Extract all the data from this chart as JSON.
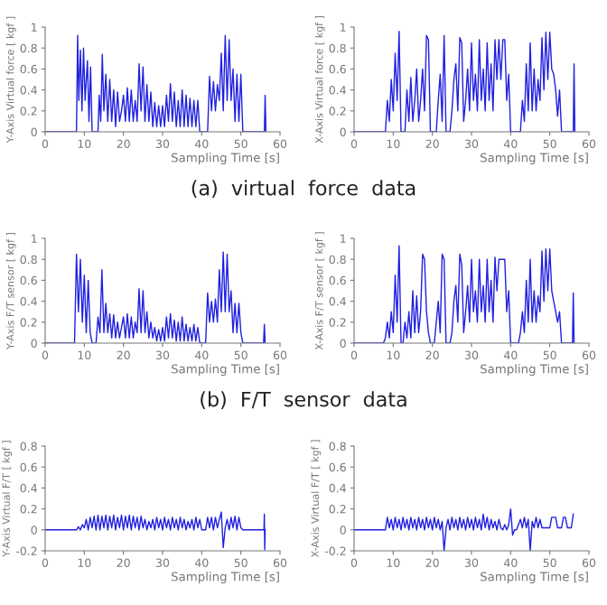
{
  "chart_data": [
    {
      "type": "line",
      "ylabel": "Y-Axis Virtual force [ kgf ]",
      "xlabel": "Sampling Time [s]",
      "xlim": [
        0,
        60
      ],
      "xticks": [
        0,
        10,
        20,
        30,
        40,
        50,
        60
      ],
      "ylim": [
        0,
        1
      ],
      "yticks": [
        0,
        0.2,
        0.4,
        0.6,
        0.8,
        1
      ],
      "grid": false,
      "legend": false,
      "series": [
        {
          "color": "#2020e0",
          "x": [
            0,
            8,
            8.3,
            8.6,
            9,
            9.4,
            9.8,
            10.2,
            10.8,
            11.2,
            11.6,
            12,
            13.5,
            13.8,
            14.2,
            14.6,
            15,
            15.5,
            16,
            16.5,
            17,
            17.5,
            18,
            18.5,
            19,
            19.5,
            20,
            20.5,
            21,
            21.5,
            22,
            22.5,
            23,
            23.5,
            24,
            24.5,
            25,
            25.5,
            26,
            26.5,
            27,
            27.5,
            28,
            28.5,
            29,
            29.5,
            30,
            30.5,
            31,
            31.5,
            32,
            32.5,
            33,
            33.5,
            34,
            34.5,
            35,
            35.5,
            36,
            36.5,
            37,
            37.5,
            38,
            38.5,
            39,
            39.5,
            41.5,
            42,
            42.5,
            43,
            43.5,
            44,
            44.5,
            45,
            45.5,
            46,
            46.5,
            47,
            47.5,
            48,
            48.5,
            49,
            49.5,
            50,
            50.5,
            56,
            56.2,
            56.4
          ],
          "values": [
            0,
            0,
            0.92,
            0.3,
            0.78,
            0.2,
            0.8,
            0.3,
            0.68,
            0.1,
            0.62,
            0,
            0,
            0.35,
            0.1,
            0.74,
            0.2,
            0.55,
            0.1,
            0.5,
            0.1,
            0.4,
            0.05,
            0.38,
            0.1,
            0.2,
            0.35,
            0.1,
            0.42,
            0.1,
            0.4,
            0.1,
            0.3,
            0.1,
            0.65,
            0.2,
            0.62,
            0.1,
            0.45,
            0.1,
            0.38,
            0.05,
            0.28,
            0.05,
            0.25,
            0.05,
            0.25,
            0.05,
            0.35,
            0.1,
            0.46,
            0.1,
            0.38,
            0.05,
            0.3,
            0.05,
            0.4,
            0.05,
            0.35,
            0.05,
            0.32,
            0.05,
            0.3,
            0.05,
            0.3,
            0,
            0,
            0.53,
            0.2,
            0.48,
            0.2,
            0.45,
            0.3,
            0.75,
            0.2,
            0.92,
            0.3,
            0.88,
            0.3,
            0.6,
            0.1,
            0.55,
            0.1,
            0.55,
            0,
            0,
            0.35,
            0
          ]
        }
      ],
      "annotations": [
        "(a)  virtual  force  data"
      ]
    },
    {
      "type": "line",
      "ylabel": "X-Axis Virtual force [ kgf ]",
      "xlabel": "Sampling Time [s]",
      "xlim": [
        0,
        60
      ],
      "xticks": [
        0,
        10,
        20,
        30,
        40,
        50,
        60
      ],
      "ylim": [
        0,
        1
      ],
      "yticks": [
        0,
        0.2,
        0.4,
        0.6,
        0.8,
        1
      ],
      "grid": false,
      "legend": false,
      "series": [
        {
          "color": "#2020e0",
          "x": [
            0,
            8,
            8.5,
            9,
            9.5,
            10,
            10.5,
            11,
            11.5,
            12,
            12.5,
            13,
            13.5,
            14,
            14.5,
            15,
            15.5,
            16,
            16.5,
            17,
            17.5,
            18,
            18.5,
            19,
            19.5,
            20,
            20.5,
            21,
            21.5,
            22,
            22.5,
            23,
            23.5,
            24,
            24.5,
            25,
            25.5,
            26,
            26.5,
            27,
            27.5,
            28,
            28.5,
            29,
            29.5,
            30,
            30.5,
            31,
            31.5,
            32,
            32.5,
            33,
            33.5,
            34,
            34.5,
            35,
            35.5,
            36,
            36.5,
            37,
            37.5,
            38,
            38.5,
            39,
            39.5,
            40,
            40.5,
            41,
            41.5,
            42,
            42.5,
            43,
            43.5,
            44,
            44.5,
            45,
            45.5,
            46,
            46.5,
            47,
            47.5,
            48,
            48.5,
            49,
            49.5,
            50,
            50.5,
            51,
            51.5,
            52,
            52.5,
            53,
            56,
            56.2,
            56.4
          ],
          "values": [
            0,
            0,
            0.3,
            0.1,
            0.5,
            0.2,
            0.75,
            0.3,
            0.96,
            0,
            0,
            0,
            0.4,
            0.1,
            0.52,
            0.1,
            0.3,
            0.6,
            0.1,
            0.3,
            0.6,
            0.2,
            0.92,
            0.88,
            0,
            0,
            0,
            0,
            0.3,
            0.55,
            0.1,
            0.92,
            0,
            0,
            0,
            0.2,
            0.5,
            0.65,
            0.2,
            0.9,
            0.85,
            0.1,
            0.3,
            0.6,
            0.2,
            0.85,
            0.3,
            0.55,
            0.2,
            0.88,
            0.3,
            0.6,
            0.2,
            0.85,
            0.3,
            0.65,
            0.2,
            0.88,
            0.5,
            0.88,
            0.5,
            0.88,
            0.88,
            0.3,
            0.55,
            0,
            0,
            0,
            0,
            0,
            0,
            0.3,
            0.1,
            0.65,
            0.2,
            0.85,
            0.2,
            0.6,
            0.2,
            0.5,
            0.3,
            0.9,
            0.4,
            0.95,
            0.5,
            0.95,
            0.6,
            0.55,
            0.4,
            0.15,
            0.4,
            0,
            0,
            0.65,
            0
          ]
        }
      ]
    },
    {
      "type": "line",
      "ylabel": "Y-Axis F/T sensor [ kgf ]",
      "xlabel": "Sampling Time [s]",
      "xlim": [
        0,
        60
      ],
      "xticks": [
        0,
        10,
        20,
        30,
        40,
        50,
        60
      ],
      "ylim": [
        0,
        1
      ],
      "yticks": [
        0,
        0.2,
        0.4,
        0.6,
        0.8,
        1
      ],
      "grid": false,
      "legend": false,
      "series": [
        {
          "color": "#2020e0",
          "x": [
            0,
            7.5,
            8,
            8.5,
            9,
            9.5,
            10,
            10.5,
            11,
            11.5,
            12,
            12.5,
            13,
            13.5,
            14,
            14.5,
            15,
            15.5,
            16,
            16.5,
            17,
            17.5,
            18,
            18.5,
            19,
            19.5,
            20,
            20.5,
            21,
            21.5,
            22,
            22.5,
            23,
            23.5,
            24,
            24.5,
            25,
            25.5,
            26,
            26.5,
            27,
            27.5,
            28,
            28.5,
            29,
            29.5,
            30,
            30.5,
            31,
            31.5,
            32,
            32.5,
            33,
            33.5,
            34,
            34.5,
            35,
            35.5,
            36,
            36.5,
            37,
            37.5,
            38,
            38.5,
            39,
            39.5,
            40,
            40.5,
            41,
            41.5,
            42,
            42.5,
            43,
            43.5,
            44,
            44.5,
            45,
            45.5,
            46,
            46.5,
            47,
            47.5,
            48,
            48.5,
            49,
            49.5,
            50,
            50.5,
            55.8,
            56,
            56.2
          ],
          "values": [
            0,
            0,
            0.85,
            0.3,
            0.8,
            0.2,
            0.65,
            0.1,
            0.6,
            0.1,
            0,
            0,
            0,
            0.25,
            0.1,
            0.7,
            0.1,
            0.38,
            0.1,
            0.28,
            0.05,
            0.27,
            0.05,
            0.2,
            0.05,
            0.15,
            0.25,
            0.05,
            0.28,
            0.05,
            0.25,
            0.05,
            0.2,
            0.1,
            0.52,
            0.1,
            0.5,
            0.1,
            0.3,
            0.05,
            0.2,
            0.05,
            0.15,
            0.02,
            0.13,
            0.02,
            0.15,
            0.02,
            0.25,
            0.05,
            0.28,
            0.05,
            0.22,
            0.02,
            0.2,
            0.02,
            0.25,
            0.02,
            0.18,
            0.02,
            0.15,
            0.02,
            0.18,
            0.02,
            0.15,
            0,
            0,
            0,
            0,
            0.48,
            0.2,
            0.4,
            0.2,
            0.42,
            0.2,
            0.7,
            0.3,
            0.87,
            0.3,
            0.85,
            0.3,
            0.5,
            0.1,
            0.38,
            0.1,
            0.38,
            0.1,
            0,
            0,
            0.18,
            0
          ]
        }
      ],
      "annotations": [
        "(b)  F/T  sensor  data"
      ]
    },
    {
      "type": "line",
      "ylabel": "X-Axis F/T sensor [ kgf ]",
      "xlabel": "Sampling Time [s]",
      "xlim": [
        0,
        60
      ],
      "xticks": [
        0,
        10,
        20,
        30,
        40,
        50,
        60
      ],
      "ylim": [
        0,
        1
      ],
      "yticks": [
        0,
        0.2,
        0.4,
        0.6,
        0.8,
        1
      ],
      "grid": false,
      "legend": false,
      "series": [
        {
          "color": "#2020e0",
          "x": [
            0,
            7.5,
            8,
            8.5,
            9,
            9.5,
            10,
            10.5,
            11,
            11.5,
            12,
            12.5,
            13,
            13.5,
            14,
            14.5,
            15,
            15.5,
            16,
            16.5,
            17,
            17.5,
            18,
            18.5,
            19,
            19.5,
            20,
            20.5,
            21,
            21.5,
            22,
            22.5,
            23,
            23.5,
            24,
            24.5,
            25,
            25.5,
            26,
            26.5,
            27,
            27.5,
            28,
            28.5,
            29,
            29.5,
            30,
            30.5,
            31,
            31.5,
            32,
            32.5,
            33,
            33.5,
            34,
            34.5,
            35,
            35.5,
            36,
            36.5,
            37,
            37.5,
            38,
            38.5,
            39,
            39.5,
            40,
            40.5,
            41,
            41.5,
            42,
            42.5,
            43,
            43.5,
            44,
            44.5,
            45,
            45.5,
            46,
            46.5,
            47,
            47.5,
            48,
            48.5,
            49,
            49.5,
            50,
            50.5,
            51,
            51.5,
            52,
            52.5,
            53,
            55.8,
            56,
            56.2
          ],
          "values": [
            0,
            0,
            0.05,
            0.2,
            0.05,
            0.3,
            0.1,
            0.65,
            0.2,
            0.93,
            0,
            0,
            0.2,
            0.05,
            0.3,
            0.05,
            0.5,
            0.1,
            0.45,
            0.1,
            0.3,
            0.85,
            0.8,
            0.3,
            0.1,
            0,
            0,
            0,
            0.2,
            0.4,
            0.1,
            0.85,
            0.8,
            0,
            0,
            0,
            0.1,
            0.4,
            0.55,
            0.2,
            0.85,
            0.75,
            0.1,
            0.3,
            0.55,
            0.2,
            0.8,
            0.3,
            0.5,
            0.2,
            0.8,
            0.3,
            0.55,
            0.2,
            0.8,
            0.3,
            0.6,
            0.2,
            0.82,
            0.5,
            0.8,
            0.8,
            0.8,
            0.8,
            0.3,
            0.5,
            0,
            0,
            0,
            0,
            0,
            0.1,
            0.3,
            0.1,
            0.6,
            0.2,
            0.8,
            0.2,
            0.5,
            0.2,
            0.45,
            0.3,
            0.88,
            0.4,
            0.9,
            0.5,
            0.9,
            0.5,
            0.4,
            0.3,
            0.2,
            0.3,
            0,
            0,
            0.48,
            0
          ]
        }
      ]
    },
    {
      "type": "line",
      "ylabel": "Y-Axis Virtual F/T [ kgf ]",
      "xlabel": "Sampling Time [s]",
      "xlim": [
        0,
        60
      ],
      "xticks": [
        0,
        10,
        20,
        30,
        40,
        50,
        60
      ],
      "ylim": [
        -0.2,
        0.8
      ],
      "yticks": [
        -0.2,
        0,
        0.2,
        0.4,
        0.6,
        0.8
      ],
      "grid": false,
      "legend": false,
      "series": [
        {
          "color": "#2020e0",
          "x": [
            0,
            8,
            8.5,
            9,
            9.5,
            10,
            10.5,
            11,
            11.5,
            12,
            12.5,
            13,
            13.5,
            14,
            14.5,
            15,
            15.5,
            16,
            16.5,
            17,
            17.5,
            18,
            18.5,
            19,
            19.5,
            20,
            20.5,
            21,
            21.5,
            22,
            22.5,
            23,
            23.5,
            24,
            24.5,
            25,
            25.5,
            26,
            26.5,
            27,
            27.5,
            28,
            28.5,
            29,
            29.5,
            30,
            30.5,
            31,
            31.5,
            32,
            32.5,
            33,
            33.5,
            34,
            34.5,
            35,
            35.5,
            36,
            36.5,
            37,
            37.5,
            38,
            38.5,
            39,
            39.5,
            40,
            40.5,
            41,
            41.5,
            42,
            42.5,
            43,
            43.5,
            44,
            44.5,
            45,
            45.5,
            46,
            46.5,
            47,
            47.5,
            48,
            48.5,
            49,
            49.5,
            50,
            50.5,
            55.9,
            56,
            56.1,
            56.2
          ],
          "values": [
            0,
            0,
            0.03,
            0,
            0.05,
            0.02,
            0.1,
            0,
            0.12,
            0.02,
            0.13,
            0,
            0.14,
            0,
            0.13,
            0.02,
            0.14,
            0,
            0.13,
            0.02,
            0.14,
            0,
            0.12,
            0.02,
            0.14,
            0,
            0.13,
            0.02,
            0.14,
            0,
            0.13,
            0.02,
            0.12,
            0,
            0.13,
            0.02,
            0.1,
            0,
            0.08,
            0.02,
            0.1,
            0,
            0.12,
            0.02,
            0.1,
            0,
            0.12,
            0.02,
            0.1,
            0,
            0.12,
            0.02,
            0.1,
            0,
            0.12,
            0.02,
            0.1,
            0,
            0.08,
            0.02,
            0.1,
            0,
            0.12,
            0.02,
            0.1,
            0,
            0,
            0,
            0.12,
            0.02,
            0.12,
            0,
            0.12,
            0.02,
            0.1,
            0.17,
            -0.17,
            0.02,
            0.1,
            0,
            0.12,
            0.02,
            0.13,
            0,
            0.12,
            0.02,
            0,
            0,
            0.15,
            -0.19,
            0
          ]
        }
      ]
    },
    {
      "type": "line",
      "ylabel": "X-Axis Virtual F/T [ kgf ]",
      "xlabel": "Sampling Time [s]",
      "xlim": [
        0,
        60
      ],
      "xticks": [
        0,
        10,
        20,
        30,
        40,
        50,
        60
      ],
      "ylim": [
        -0.2,
        0.8
      ],
      "yticks": [
        -0.2,
        0,
        0.2,
        0.4,
        0.6,
        0.8
      ],
      "grid": false,
      "legend": false,
      "series": [
        {
          "color": "#2020e0",
          "x": [
            0,
            8,
            8.5,
            9,
            9.5,
            10,
            10.5,
            11,
            11.5,
            12,
            12.5,
            13,
            13.5,
            14,
            14.5,
            15,
            15.5,
            16,
            16.5,
            17,
            17.5,
            18,
            18.5,
            19,
            19.5,
            20,
            20.5,
            21,
            21.5,
            22,
            22.5,
            23,
            23.5,
            24,
            24.5,
            25,
            25.5,
            26,
            26.5,
            27,
            27.5,
            28,
            28.5,
            29,
            29.5,
            30,
            30.5,
            31,
            31.5,
            32,
            32.5,
            33,
            33.5,
            34,
            34.5,
            35,
            35.5,
            36,
            36.5,
            37,
            37.5,
            38,
            38.5,
            39,
            39.5,
            40,
            40.5,
            41,
            41.5,
            42,
            42.5,
            43,
            43.5,
            44,
            44.5,
            45,
            45.5,
            46,
            46.5,
            47,
            47.5,
            48,
            48.5,
            49,
            49.5,
            50,
            50.5,
            51,
            51.5,
            52,
            52.5,
            53,
            53.5,
            54,
            54.5,
            55,
            55.5,
            56
          ],
          "values": [
            0,
            0,
            0.12,
            0.02,
            0.1,
            0,
            0.12,
            0.02,
            0.1,
            0,
            0.12,
            0.02,
            0.1,
            0,
            0.12,
            0.02,
            0.1,
            0,
            0.12,
            0.02,
            0.1,
            0,
            0.12,
            0.02,
            0.1,
            0,
            0.12,
            0.02,
            0.1,
            0,
            0.08,
            -0.2,
            0.02,
            0.1,
            0,
            0.12,
            0.02,
            0.1,
            0,
            0.12,
            0.02,
            0.1,
            0,
            0.12,
            0.02,
            0.1,
            0,
            0.12,
            0.02,
            0.1,
            0,
            0.15,
            0.02,
            0.12,
            0,
            0.1,
            0.02,
            0.08,
            0,
            0.1,
            0.02,
            0,
            0.05,
            0,
            0.05,
            0.2,
            -0.05,
            0,
            0,
            0.05,
            0.1,
            0.02,
            0.12,
            0.02,
            0.1,
            -0.2,
            0.08,
            0.02,
            0.12,
            0.02,
            0.1,
            0.02,
            0.02,
            0.02,
            0.02,
            0.02,
            0.12,
            0.12,
            0.12,
            0.02,
            0.02,
            0.02,
            0.12,
            0.12,
            0.02,
            0.02,
            0.02,
            0.15
          ]
        }
      ]
    }
  ]
}
